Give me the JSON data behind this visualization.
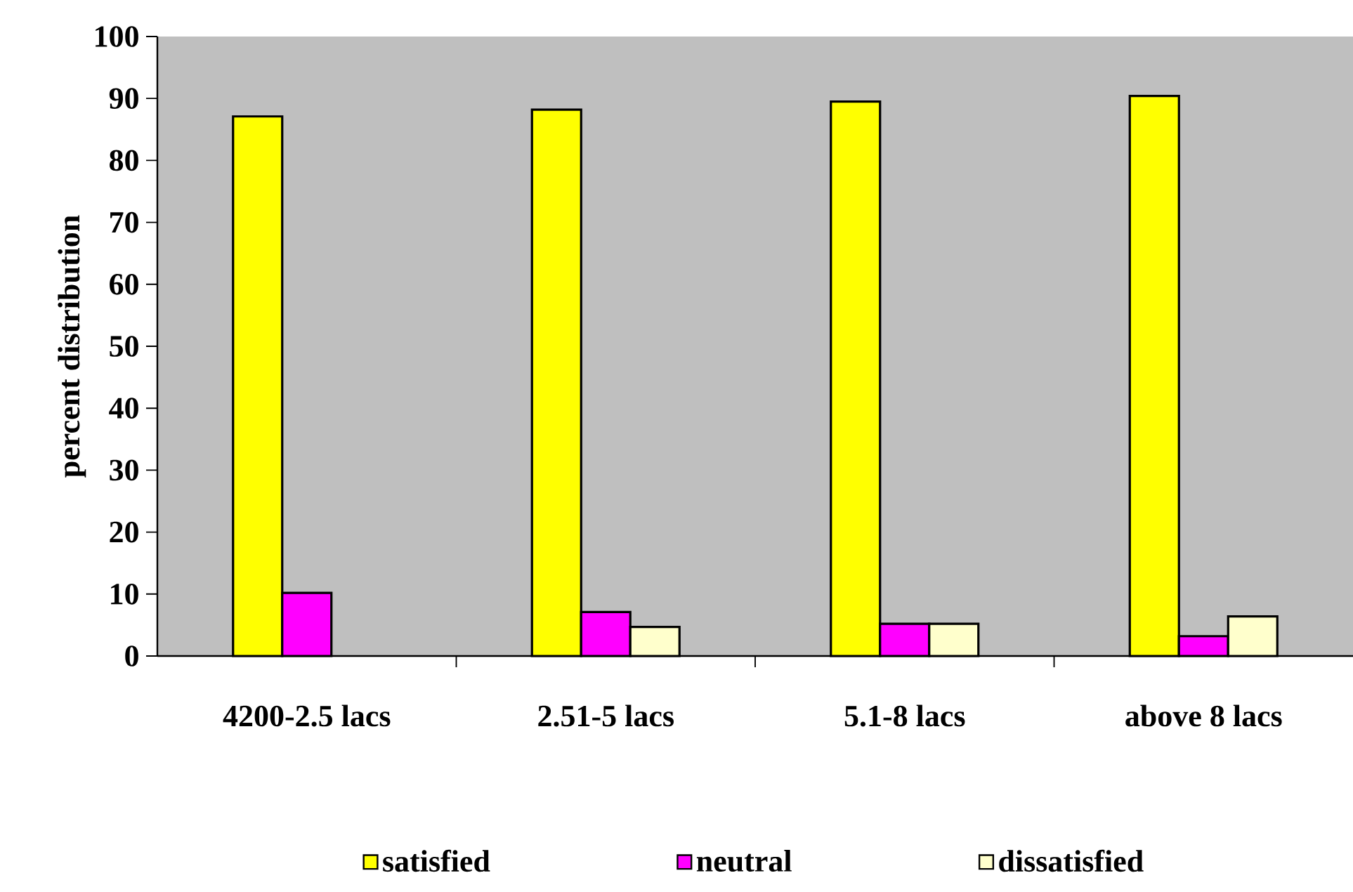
{
  "chart_data": {
    "type": "bar",
    "ylabel": "percent distribution",
    "categories": [
      "4200-2.5 lacs",
      "2.51-5 lacs",
      "5.1-8 lacs",
      "above 8 lacs"
    ],
    "series": [
      {
        "name": "satisfied",
        "color": "#ffff00",
        "values": [
          87.1,
          88.2,
          89.5,
          90.4
        ]
      },
      {
        "name": "neutral",
        "color": "#ff00ff",
        "values": [
          10.2,
          7.1,
          5.2,
          3.2
        ]
      },
      {
        "name": "dissatisfied",
        "color": "#ffffcc",
        "values": [
          null,
          4.7,
          5.2,
          6.4
        ]
      }
    ],
    "ylim": [
      0,
      100
    ],
    "yticks": [
      0,
      10,
      20,
      30,
      40,
      50,
      60,
      70,
      80,
      90,
      100
    ],
    "legend": "bottom"
  }
}
